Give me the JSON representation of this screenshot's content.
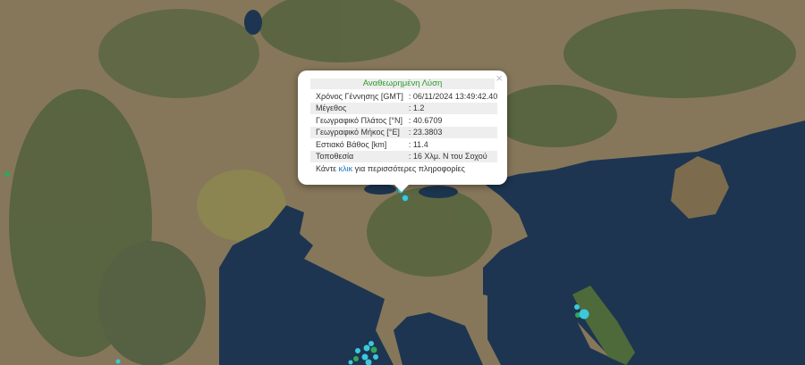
{
  "popup": {
    "title": "Αναθεωρημένη Λύση",
    "close": "×",
    "rows": [
      {
        "label": "Χρόνος Γέννησης [GMT]",
        "value": ": 06/11/2024 13:49:42.40"
      },
      {
        "label": "Μέγεθος",
        "value": ": 1.2"
      },
      {
        "label": "Γεωγραφικό Πλάτος [°N]",
        "value": ": 40.6709"
      },
      {
        "label": "Γεωγραφικό Μήκος [°E]",
        "value": ": 23.3803"
      },
      {
        "label": "Εστιακό Βάθος [km]",
        "value": ": 11.4"
      },
      {
        "label": "Τοποθεσία",
        "value": ": 16 Χλμ. Ν του Σοχού"
      }
    ],
    "more_prefix": "Κάντε ",
    "more_link": "κλικ",
    "more_suffix": " για περισσότερες πληροφορίες"
  },
  "colors": {
    "sea": "#1d3550",
    "land": "#7d6f4f",
    "forest": "#3f5a32",
    "marker": "#3cc8dc",
    "marker_old": "#2fa85a"
  }
}
